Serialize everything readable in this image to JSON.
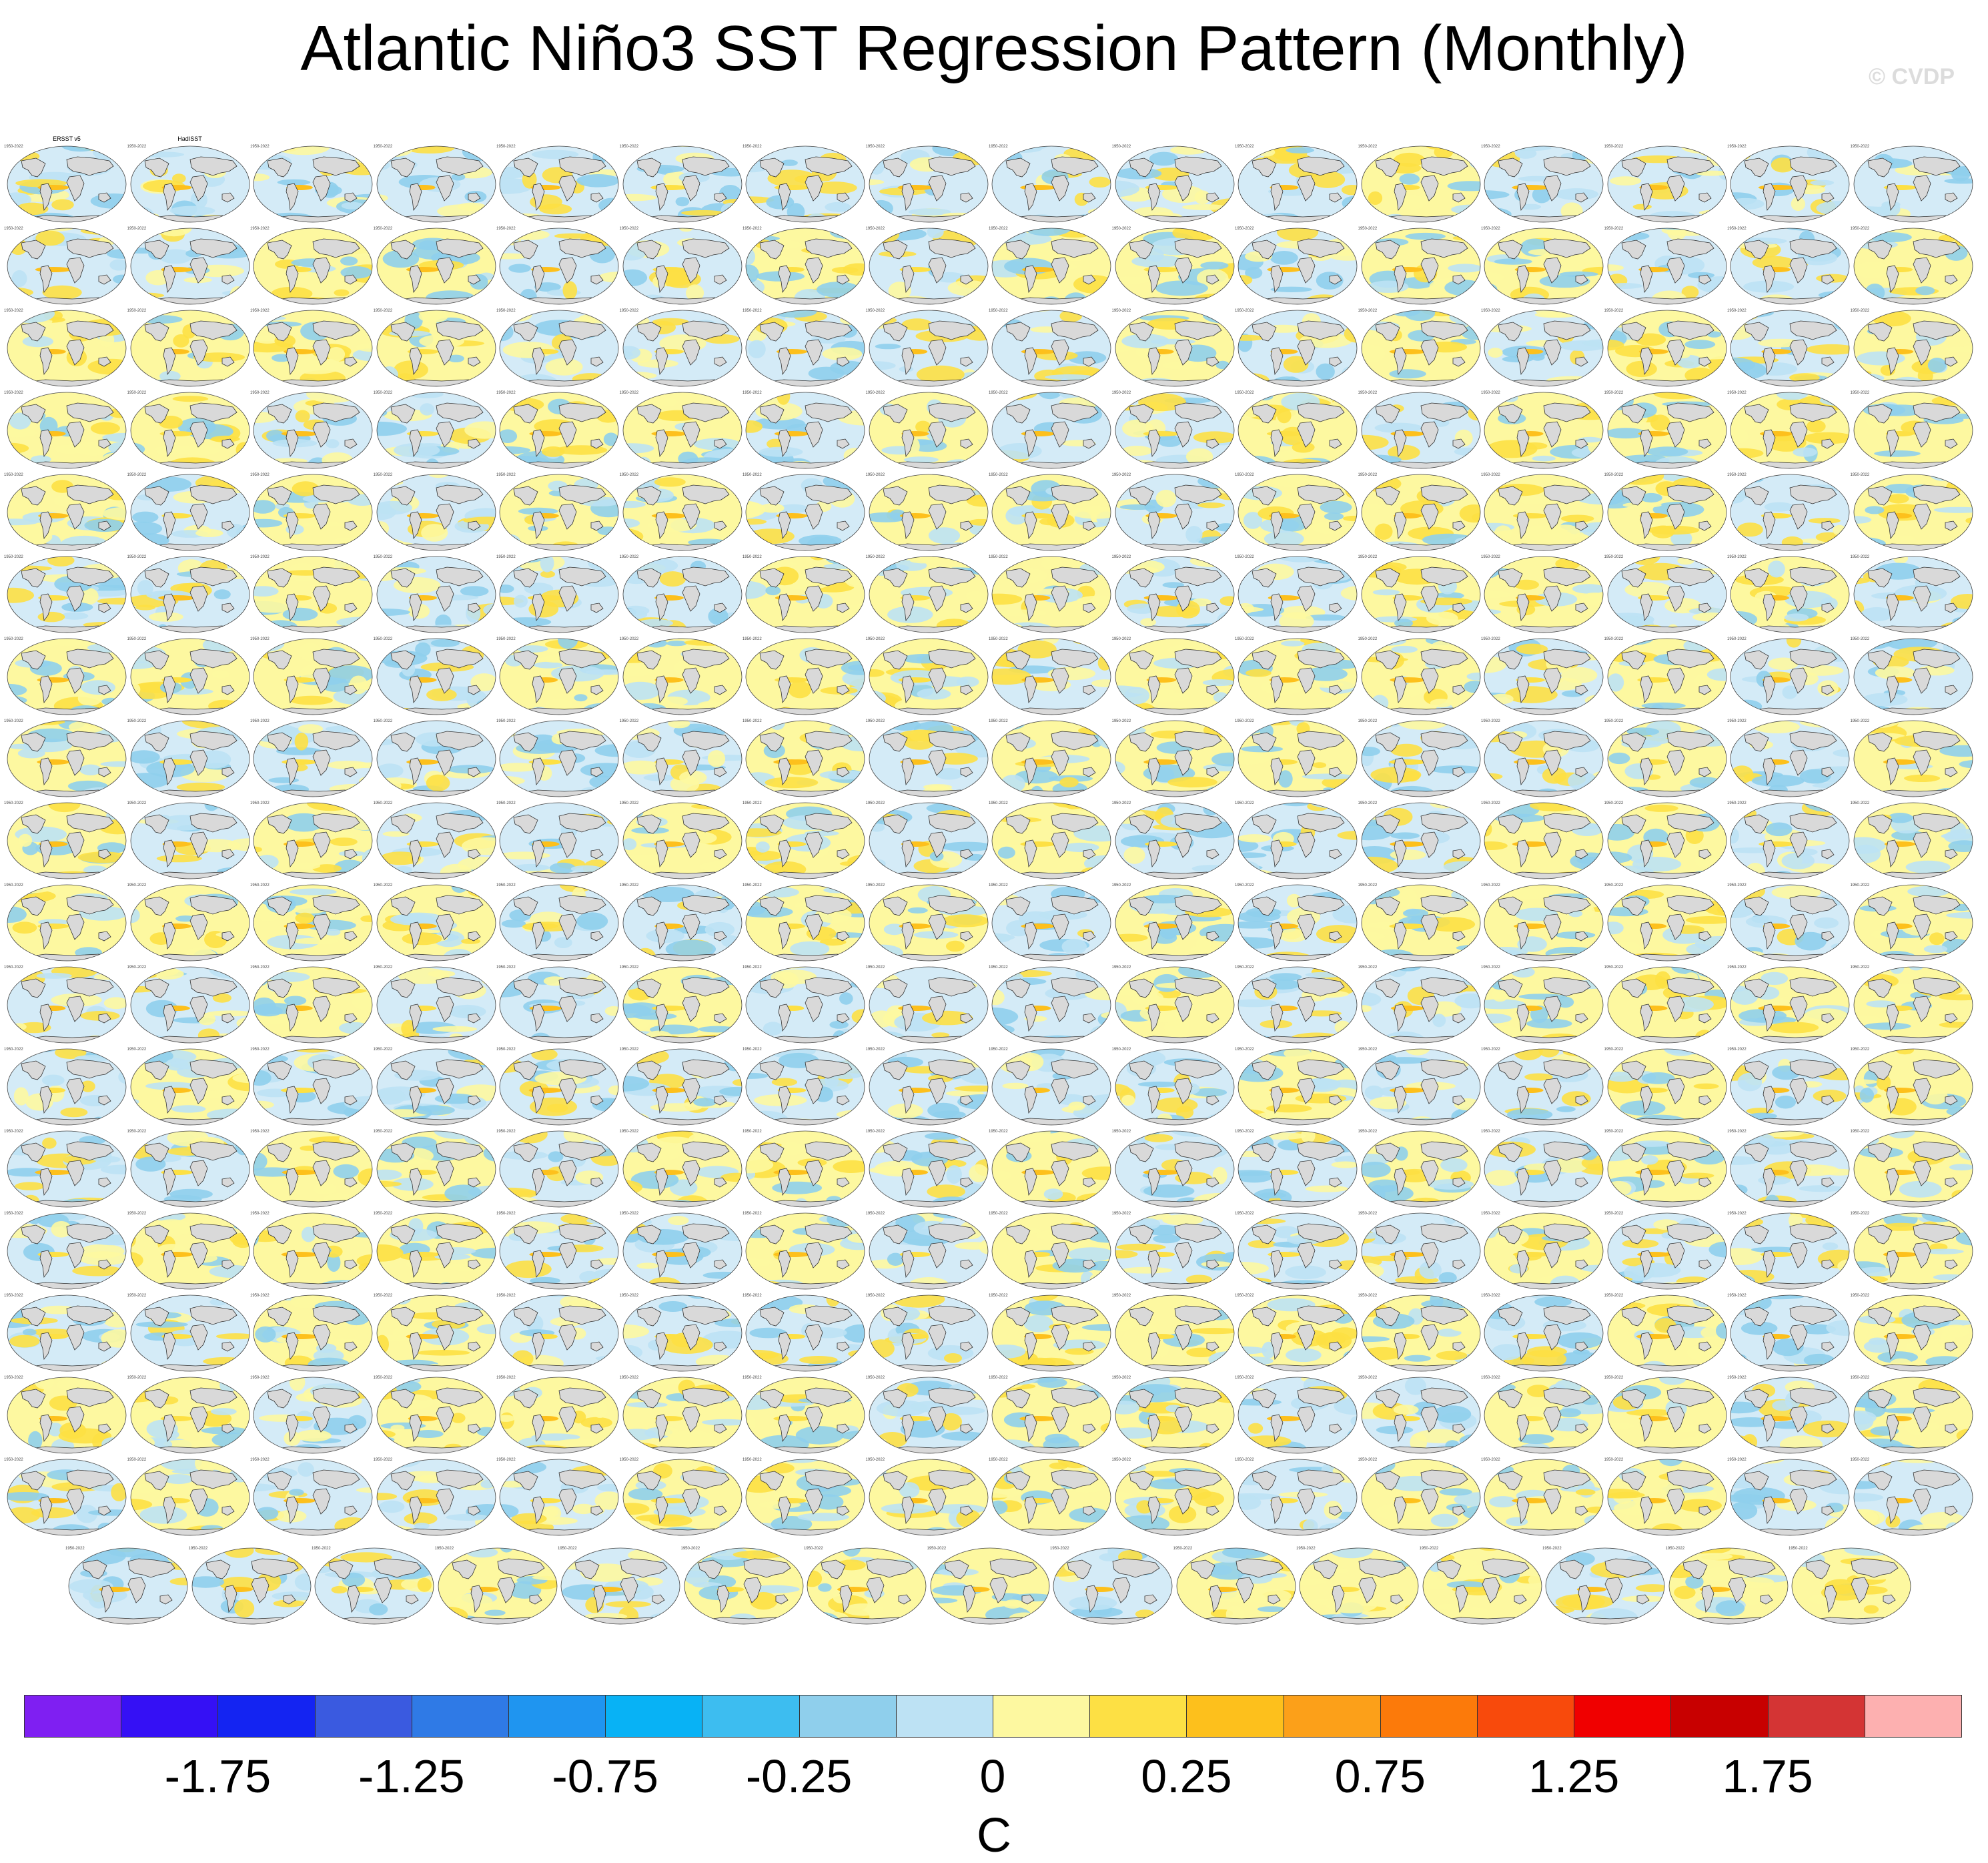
{
  "title": "Atlantic Niño3 SST Regression Pattern (Monthly)",
  "copyright": "© CVDP",
  "chart_data": {
    "type": "heatmap",
    "title": "Atlantic Niño3 SST Regression Pattern (Monthly)",
    "variable": "SST regression onto Atlantic Niño3 index",
    "projection": "global map panels (ensemble members)",
    "panel_grid": {
      "rows": 17,
      "cols": 16,
      "extra_row_panels": 15
    },
    "panel_period_label": "1950-2022",
    "panels_legible_names": [
      "ERSST v5",
      "HadISST"
    ],
    "colorbar": {
      "unit": "C",
      "tick_labels": [
        "-1.75",
        "-1.25",
        "-0.75",
        "-0.25",
        "0",
        "0.25",
        "0.75",
        "1.25",
        "1.75"
      ],
      "colors": [
        "#7f1ff2",
        "#3510f5",
        "#1424f2",
        "#3a5ae0",
        "#2f7ae6",
        "#1f95f0",
        "#08b2f5",
        "#3dbdf0",
        "#8fcfec",
        "#bde2f4",
        "#fdf8a0",
        "#fde044",
        "#fdc01c",
        "#fca019",
        "#fc7a0a",
        "#f84a0c",
        "#f00000",
        "#c80000",
        "#d43434",
        "#fdb0b0"
      ]
    }
  }
}
